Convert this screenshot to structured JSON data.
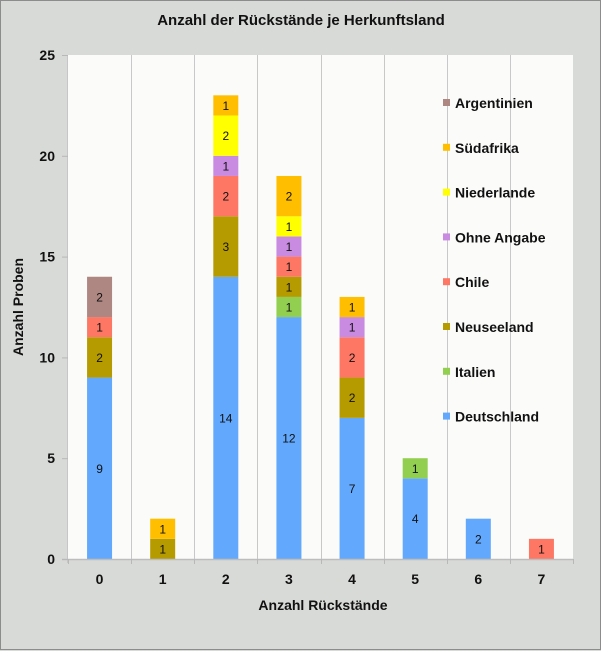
{
  "chart_data": {
    "type": "bar",
    "stacked": true,
    "title": "Anzahl der Rückstände je Herkunftsland",
    "xlabel": "Anzahl Rückstände",
    "ylabel": "Anzahl Proben",
    "ylim": [
      0,
      25
    ],
    "yticks": [
      "0",
      "5",
      "10",
      "15",
      "20",
      "25"
    ],
    "ytick_values": [
      0,
      5,
      10,
      15,
      20,
      25
    ],
    "categories": [
      "0",
      "1",
      "2",
      "3",
      "4",
      "5",
      "6",
      "7"
    ],
    "grid": "vertical",
    "legend_position": "top-right",
    "series": [
      {
        "name": "Deutschland",
        "color": "#62a8fc",
        "values": [
          9,
          0,
          14,
          12,
          7,
          4,
          2,
          0
        ]
      },
      {
        "name": "Italien",
        "color": "#92cf50",
        "values": [
          0,
          0,
          0,
          1,
          0,
          1,
          0,
          0
        ]
      },
      {
        "name": "Neuseeland",
        "color": "#b59b00",
        "values": [
          2,
          1,
          3,
          1,
          2,
          0,
          0,
          0
        ]
      },
      {
        "name": "Chile",
        "color": "#fd7764",
        "values": [
          1,
          0,
          2,
          1,
          2,
          0,
          0,
          1
        ]
      },
      {
        "name": "Ohne Angabe",
        "color": "#c98ae2",
        "values": [
          0,
          0,
          1,
          1,
          1,
          0,
          0,
          0
        ]
      },
      {
        "name": "Niederlande",
        "color": "#ffff00",
        "values": [
          0,
          0,
          2,
          1,
          0,
          0,
          0,
          0
        ]
      },
      {
        "name": "Südafrika",
        "color": "#ffbf00",
        "values": [
          0,
          1,
          1,
          2,
          1,
          0,
          0,
          0
        ]
      },
      {
        "name": "Argentinien",
        "color": "#ae8682",
        "values": [
          2,
          0,
          0,
          0,
          0,
          0,
          0,
          0
        ]
      }
    ],
    "legend_order": [
      "Argentinien",
      "Südafrika",
      "Niederlande",
      "Ohne Angabe",
      "Chile",
      "Neuseeland",
      "Italien",
      "Deutschland"
    ]
  }
}
